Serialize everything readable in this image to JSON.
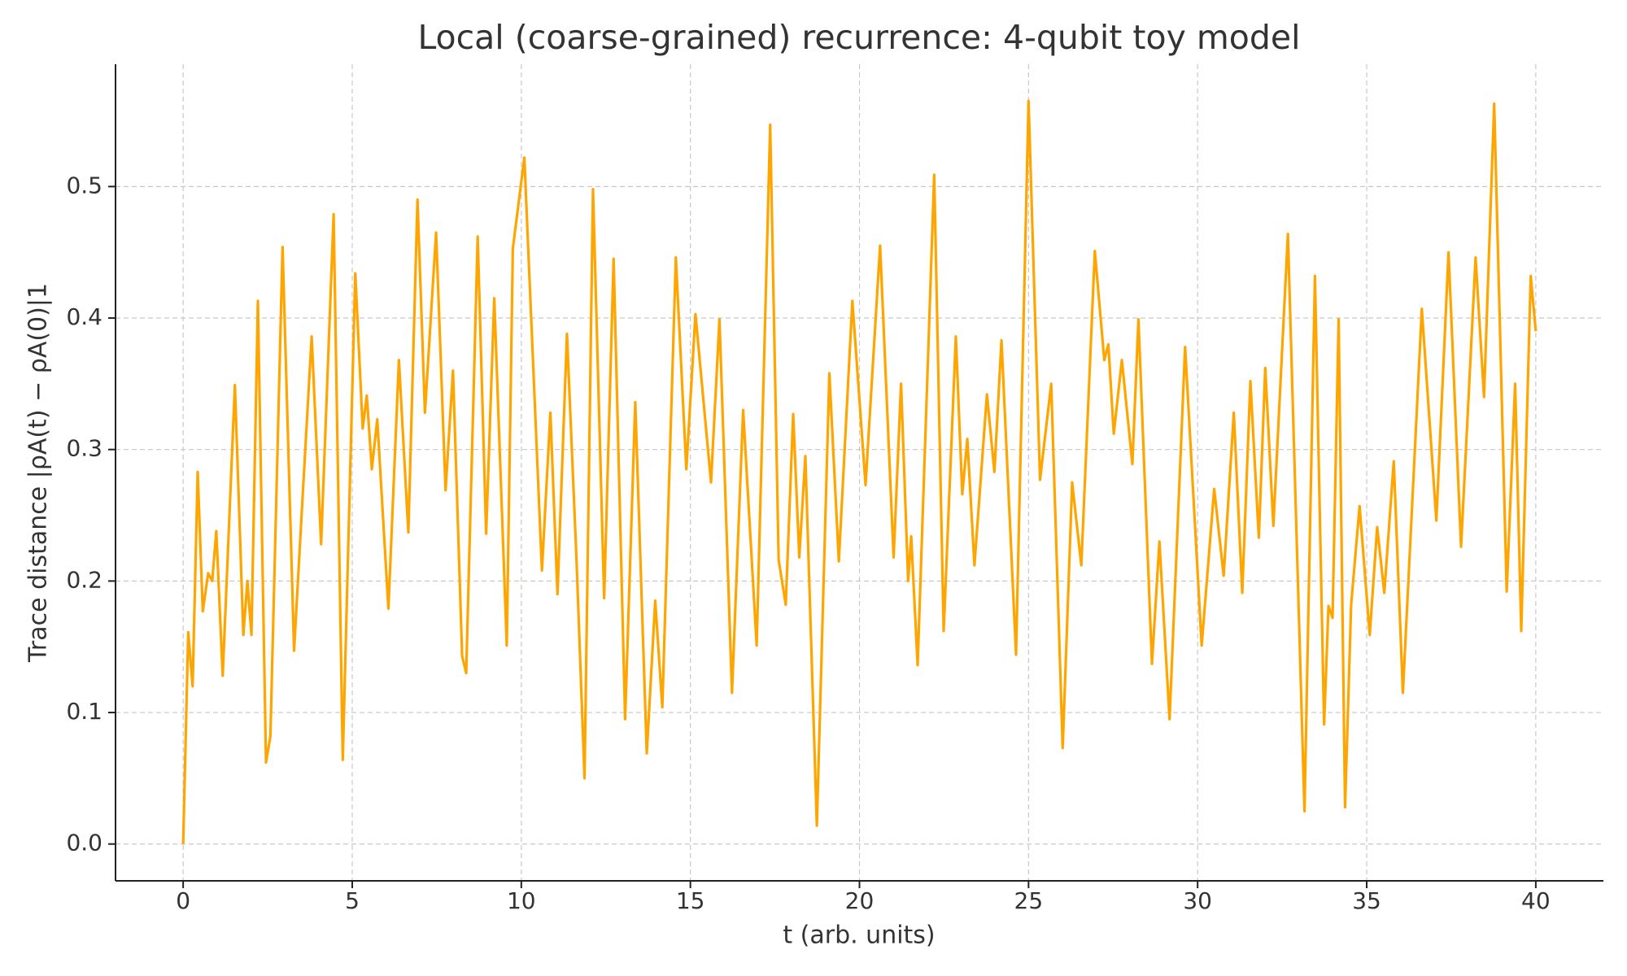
{
  "chart_data": {
    "type": "line",
    "title": "Local (coarse-grained) recurrence: 4-qubit toy model",
    "xlabel": "t (arb. units)",
    "ylabel": "Trace distance |ρA(t) − ρA(0)|1",
    "color": "#ffa500",
    "grid": true,
    "xlim": [
      -2,
      42
    ],
    "ylim": [
      -0.028,
      0.593
    ],
    "xticks": [
      0,
      5,
      10,
      15,
      20,
      25,
      30,
      35,
      40
    ],
    "yticks": [
      {
        "value": 0,
        "label": "0.0"
      },
      0.1,
      0.2,
      0.3,
      0.4,
      0.5
    ],
    "x": [
      0,
      0.15,
      0.28,
      0.43,
      0.58,
      0.74,
      0.86,
      0.98,
      1.17,
      1.53,
      1.78,
      1.9,
      2.02,
      2.21,
      2.45,
      2.58,
      2.94,
      3.28,
      3.5,
      3.8,
      4.08,
      4.45,
      4.72,
      5.09,
      5.31,
      5.43,
      5.58,
      5.74,
      6.07,
      6.38,
      6.66,
      6.93,
      7.15,
      7.48,
      7.76,
      7.98,
      8.25,
      8.37,
      8.71,
      8.96,
      9.2,
      9.57,
      9.75,
      10.09,
      10.61,
      10.86,
      11.07,
      11.35,
      11.63,
      11.87,
      12.12,
      12.45,
      12.73,
      13.07,
      13.37,
      13.71,
      13.96,
      14.17,
      14.57,
      14.88,
      15.15,
      15.61,
      15.86,
      16.23,
      16.56,
      16.96,
      17.36,
      17.61,
      17.82,
      18.04,
      18.22,
      18.4,
      18.74,
      19.11,
      19.39,
      19.79,
      20.18,
      20.61,
      21.01,
      21.23,
      21.44,
      21.53,
      21.72,
      22.21,
      22.49,
      22.85,
      23.04,
      23.19,
      23.4,
      23.77,
      23.99,
      24.2,
      24.63,
      25.0,
      25.34,
      25.67,
      26.01,
      26.29,
      26.56,
      26.96,
      27.24,
      27.36,
      27.52,
      27.76,
      28.07,
      28.25,
      28.65,
      28.87,
      29.17,
      29.63,
      30.12,
      30.49,
      30.77,
      31.07,
      31.32,
      31.56,
      31.81,
      32.0,
      32.24,
      32.67,
      33.16,
      33.47,
      33.74,
      33.87,
      33.99,
      34.17,
      34.36,
      34.54,
      34.79,
      35.09,
      35.31,
      35.52,
      35.8,
      36.07,
      36.63,
      37.06,
      37.42,
      37.79,
      38.22,
      38.47,
      38.77,
      39.14,
      39.39,
      39.57,
      39.85,
      40.0
    ],
    "values": [
      0,
      0.161,
      0.12,
      0.283,
      0.177,
      0.206,
      0.2,
      0.238,
      0.128,
      0.349,
      0.159,
      0.2,
      0.159,
      0.413,
      0.062,
      0.082,
      0.454,
      0.147,
      0.249,
      0.386,
      0.228,
      0.479,
      0.064,
      0.434,
      0.316,
      0.341,
      0.285,
      0.323,
      0.179,
      0.368,
      0.237,
      0.49,
      0.328,
      0.465,
      0.269,
      0.36,
      0.143,
      0.13,
      0.462,
      0.236,
      0.415,
      0.151,
      0.453,
      0.522,
      0.208,
      0.328,
      0.19,
      0.388,
      0.218,
      0.05,
      0.498,
      0.187,
      0.445,
      0.095,
      0.336,
      0.069,
      0.185,
      0.104,
      0.446,
      0.285,
      0.403,
      0.275,
      0.399,
      0.115,
      0.33,
      0.151,
      0.547,
      0.216,
      0.182,
      0.327,
      0.218,
      0.295,
      0.014,
      0.358,
      0.215,
      0.413,
      0.273,
      0.455,
      0.218,
      0.35,
      0.2,
      0.234,
      0.136,
      0.509,
      0.162,
      0.386,
      0.266,
      0.308,
      0.212,
      0.342,
      0.283,
      0.383,
      0.144,
      0.565,
      0.277,
      0.35,
      0.073,
      0.275,
      0.212,
      0.451,
      0.368,
      0.38,
      0.312,
      0.368,
      0.289,
      0.399,
      0.137,
      0.23,
      0.095,
      0.378,
      0.151,
      0.27,
      0.204,
      0.328,
      0.191,
      0.352,
      0.233,
      0.362,
      0.242,
      0.464,
      0.025,
      0.432,
      0.091,
      0.181,
      0.172,
      0.399,
      0.028,
      0.182,
      0.257,
      0.159,
      0.241,
      0.191,
      0.291,
      0.115,
      0.407,
      0.246,
      0.45,
      0.226,
      0.446,
      0.34,
      0.563,
      0.192,
      0.35,
      0.162,
      0.432,
      0.39
    ]
  }
}
